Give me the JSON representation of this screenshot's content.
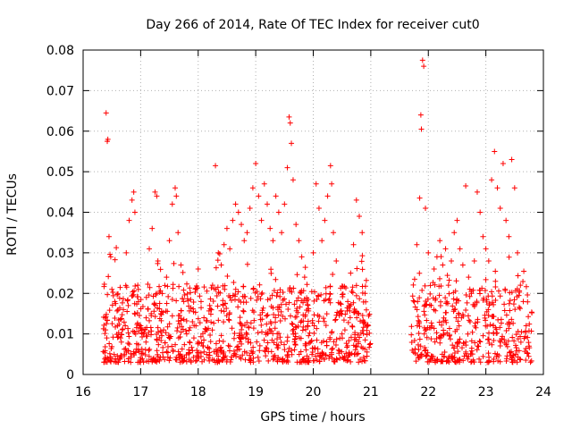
{
  "chart_data": {
    "type": "scatter",
    "title": "Day 266 of 2014, Rate Of TEC Index for receiver cut0",
    "xlabel": "GPS time / hours",
    "ylabel": "ROTI / TECUs",
    "xlim": [
      16,
      24
    ],
    "ylim": [
      0,
      0.08
    ],
    "xticks": [
      16,
      17,
      18,
      19,
      20,
      21,
      22,
      23,
      24
    ],
    "xtick_labels": [
      "16",
      "17",
      "18",
      "19",
      "20",
      "21",
      "22",
      "23",
      "24"
    ],
    "yticks": [
      0,
      0.01,
      0.02,
      0.03,
      0.04,
      0.05,
      0.06,
      0.07,
      0.08
    ],
    "ytick_labels": [
      "0",
      "0.01",
      "0.02",
      "0.03",
      "0.04",
      "0.05",
      "0.06",
      "0.07",
      "0.08"
    ],
    "grid": true,
    "marker": "plus",
    "marker_color": "#ff0000",
    "series": [
      {
        "name": "ROTI",
        "points": [
          [
            16.4,
            0.0645
          ],
          [
            16.42,
            0.0575
          ],
          [
            16.43,
            0.058
          ],
          [
            16.45,
            0.034
          ],
          [
            16.48,
            0.029
          ],
          [
            16.5,
            0.021
          ],
          [
            16.55,
            0.018
          ],
          [
            16.6,
            0.012
          ],
          [
            16.65,
            0.009
          ],
          [
            16.7,
            0.016
          ],
          [
            16.75,
            0.03
          ],
          [
            16.8,
            0.038
          ],
          [
            16.85,
            0.043
          ],
          [
            16.88,
            0.045
          ],
          [
            16.9,
            0.04
          ],
          [
            16.95,
            0.022
          ],
          [
            17.0,
            0.012
          ],
          [
            17.05,
            0.01
          ],
          [
            17.1,
            0.019
          ],
          [
            17.15,
            0.031
          ],
          [
            17.2,
            0.036
          ],
          [
            17.25,
            0.045
          ],
          [
            17.28,
            0.044
          ],
          [
            17.3,
            0.028
          ],
          [
            17.35,
            0.015
          ],
          [
            17.4,
            0.011
          ],
          [
            17.45,
            0.024
          ],
          [
            17.5,
            0.033
          ],
          [
            17.55,
            0.042
          ],
          [
            17.6,
            0.046
          ],
          [
            17.62,
            0.044
          ],
          [
            17.65,
            0.035
          ],
          [
            17.7,
            0.027
          ],
          [
            17.75,
            0.018
          ],
          [
            17.8,
            0.01
          ],
          [
            17.85,
            0.008
          ],
          [
            17.9,
            0.013
          ],
          [
            17.95,
            0.021
          ],
          [
            18.0,
            0.026
          ],
          [
            18.05,
            0.018
          ],
          [
            18.1,
            0.014
          ],
          [
            18.15,
            0.011
          ],
          [
            18.2,
            0.017
          ],
          [
            18.25,
            0.022
          ],
          [
            18.3,
            0.0515
          ],
          [
            18.35,
            0.03
          ],
          [
            18.4,
            0.027
          ],
          [
            18.45,
            0.032
          ],
          [
            18.5,
            0.036
          ],
          [
            18.55,
            0.031
          ],
          [
            18.6,
            0.038
          ],
          [
            18.65,
            0.042
          ],
          [
            18.7,
            0.04
          ],
          [
            18.75,
            0.037
          ],
          [
            18.8,
            0.033
          ],
          [
            18.85,
            0.035
          ],
          [
            18.9,
            0.041
          ],
          [
            18.95,
            0.046
          ],
          [
            19.0,
            0.052
          ],
          [
            19.05,
            0.044
          ],
          [
            19.1,
            0.038
          ],
          [
            19.15,
            0.047
          ],
          [
            19.2,
            0.042
          ],
          [
            19.25,
            0.036
          ],
          [
            19.3,
            0.033
          ],
          [
            19.35,
            0.044
          ],
          [
            19.4,
            0.04
          ],
          [
            19.45,
            0.035
          ],
          [
            19.5,
            0.042
          ],
          [
            19.55,
            0.051
          ],
          [
            19.58,
            0.0635
          ],
          [
            19.6,
            0.062
          ],
          [
            19.62,
            0.057
          ],
          [
            19.65,
            0.048
          ],
          [
            19.7,
            0.037
          ],
          [
            19.75,
            0.033
          ],
          [
            19.8,
            0.029
          ],
          [
            19.85,
            0.024
          ],
          [
            19.9,
            0.012
          ],
          [
            19.92,
            0.004
          ],
          [
            19.95,
            0.008
          ],
          [
            20.0,
            0.03
          ],
          [
            20.05,
            0.047
          ],
          [
            20.1,
            0.041
          ],
          [
            20.15,
            0.033
          ],
          [
            20.2,
            0.038
          ],
          [
            20.25,
            0.044
          ],
          [
            20.3,
            0.0515
          ],
          [
            20.32,
            0.047
          ],
          [
            20.35,
            0.035
          ],
          [
            20.4,
            0.028
          ],
          [
            20.45,
            0.015
          ],
          [
            20.5,
            0.01
          ],
          [
            20.55,
            0.011
          ],
          [
            20.6,
            0.018
          ],
          [
            20.65,
            0.025
          ],
          [
            20.7,
            0.032
          ],
          [
            20.75,
            0.043
          ],
          [
            20.8,
            0.039
          ],
          [
            20.85,
            0.035
          ],
          [
            20.9,
            0.02
          ],
          [
            20.95,
            0.012
          ],
          [
            21.8,
            0.032
          ],
          [
            21.85,
            0.0435
          ],
          [
            21.87,
            0.064
          ],
          [
            21.88,
            0.0605
          ],
          [
            21.9,
            0.0775
          ],
          [
            21.92,
            0.076
          ],
          [
            21.95,
            0.041
          ],
          [
            22.0,
            0.03
          ],
          [
            22.05,
            0.017
          ],
          [
            22.1,
            0.026
          ],
          [
            22.15,
            0.029
          ],
          [
            22.2,
            0.033
          ],
          [
            22.25,
            0.027
          ],
          [
            22.3,
            0.031
          ],
          [
            22.35,
            0.022
          ],
          [
            22.4,
            0.028
          ],
          [
            22.45,
            0.035
          ],
          [
            22.5,
            0.038
          ],
          [
            22.55,
            0.031
          ],
          [
            22.6,
            0.027
          ],
          [
            22.65,
            0.0465
          ],
          [
            22.7,
            0.024
          ],
          [
            22.75,
            0.02
          ],
          [
            22.8,
            0.028
          ],
          [
            22.85,
            0.045
          ],
          [
            22.9,
            0.04
          ],
          [
            22.95,
            0.034
          ],
          [
            23.0,
            0.031
          ],
          [
            23.05,
            0.028
          ],
          [
            23.1,
            0.048
          ],
          [
            23.15,
            0.055
          ],
          [
            23.2,
            0.046
          ],
          [
            23.25,
            0.041
          ],
          [
            23.3,
            0.052
          ],
          [
            23.35,
            0.038
          ],
          [
            23.4,
            0.034
          ],
          [
            23.45,
            0.053
          ],
          [
            23.5,
            0.046
          ],
          [
            23.55,
            0.03
          ],
          [
            23.6,
            0.022
          ],
          [
            23.65,
            0.018
          ],
          [
            23.7,
            0.012
          ],
          [
            23.75,
            0.007
          ]
        ]
      }
    ],
    "band": {
      "segments": [
        [
          16.35,
          21.0
        ],
        [
          21.7,
          23.8
        ]
      ],
      "base_range": [
        0.003,
        0.022
      ],
      "point_count": 1400
    }
  }
}
